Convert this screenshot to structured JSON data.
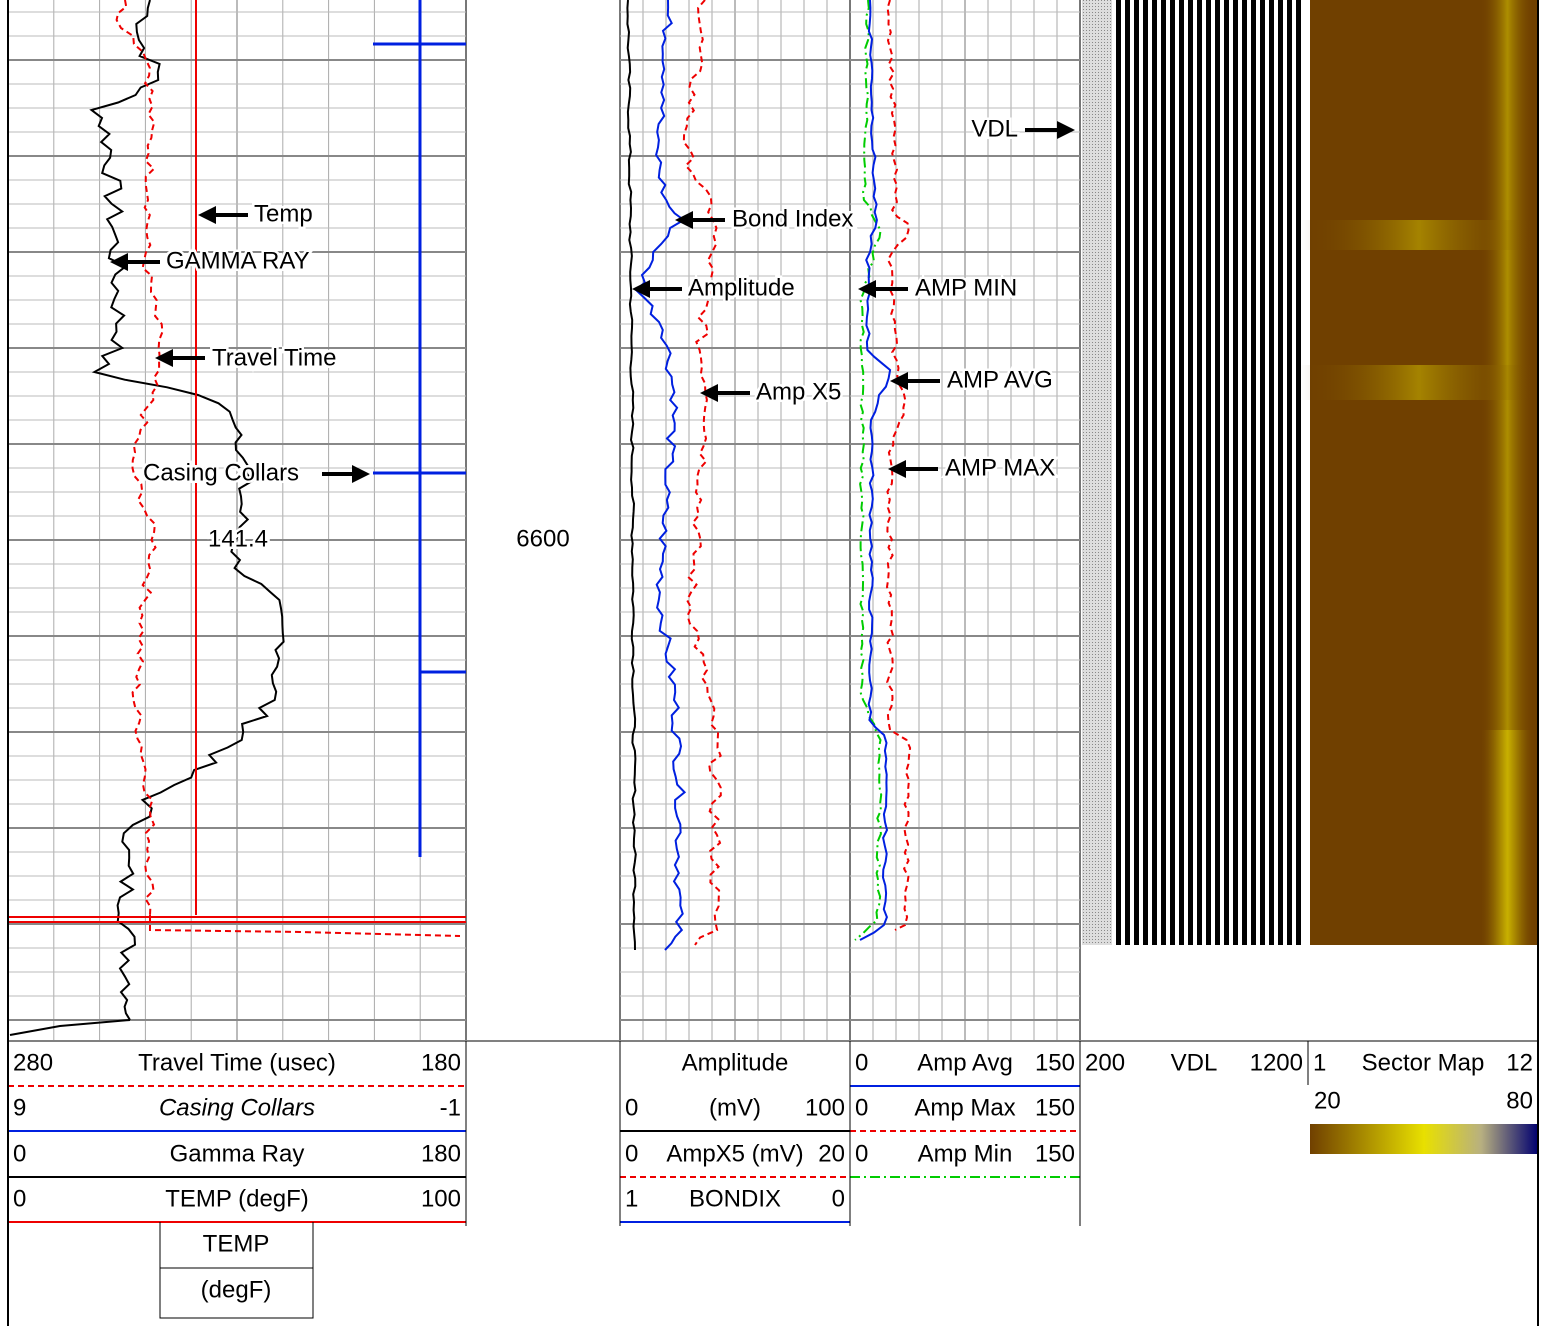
{
  "annotations": {
    "temp": "Temp",
    "gamma_ray": "GAMMA RAY",
    "travel_time": "Travel Time",
    "casing_collars": "Casing Collars",
    "reading": "141.4",
    "depth": "6600",
    "vdl": "VDL",
    "bond_index": "Bond Index",
    "amplitude": "Amplitude",
    "amp_x5": "Amp X5",
    "amp_min": "AMP MIN",
    "amp_avg": "AMP AVG",
    "amp_max": "AMP MAX"
  },
  "header": {
    "track1": [
      {
        "left": "280",
        "name": "Travel Time (usec)",
        "right": "180"
      },
      {
        "left": "9",
        "name": "Casing Collars",
        "right": "-1"
      },
      {
        "left": "0",
        "name": "Gamma Ray",
        "right": "180"
      },
      {
        "left": "0",
        "name": "TEMP (degF)",
        "right": "100"
      }
    ],
    "track1_box": [
      "TEMP",
      "(degF)"
    ],
    "track2_title": "Amplitude",
    "track2": [
      {
        "left": "0",
        "name": "(mV)",
        "right": "100"
      },
      {
        "left": "0",
        "name": "AmpX5 (mV)",
        "right": "20"
      },
      {
        "left": "1",
        "name": "BONDIX",
        "right": "0"
      }
    ],
    "track3": [
      {
        "left": "0",
        "name": "Amp Avg",
        "right": "150"
      },
      {
        "left": "0",
        "name": "Amp Max",
        "right": "150"
      },
      {
        "left": "0",
        "name": "Amp Min",
        "right": "150"
      }
    ],
    "vdl": {
      "left": "200",
      "name": "VDL",
      "right": "1200"
    },
    "sector": {
      "left": "1",
      "name": "Sector Map",
      "right": "12",
      "low": "20",
      "high": "80"
    }
  }
}
